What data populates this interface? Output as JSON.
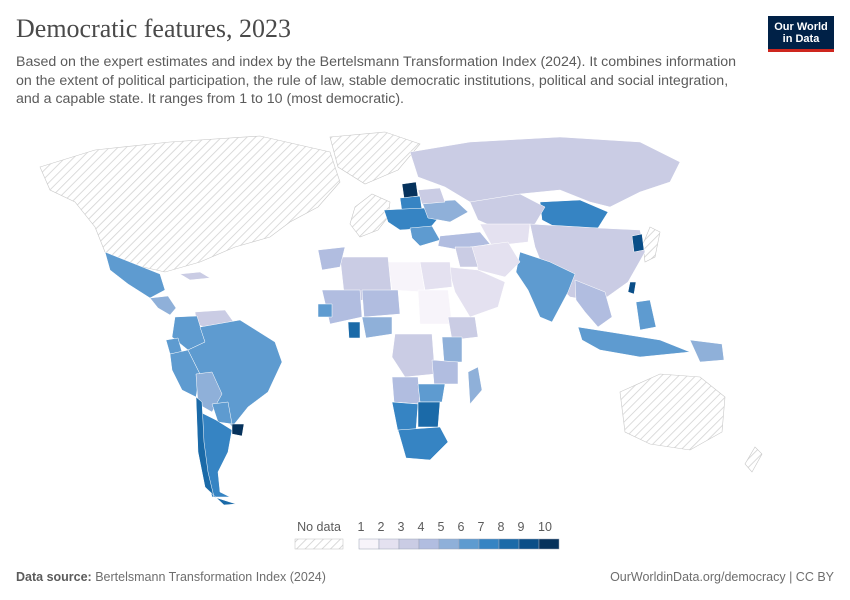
{
  "header": {
    "title": "Democratic features, 2023",
    "subtitle": "Based on the expert estimates and index by the Bertelsmann Transformation Index (2024). It combines information on the extent of political participation, the rule of law, stable democratic institutions, political and social integration, and a capable state. It ranges from 1 to 10 (most democratic).",
    "logo_line1": "Our World",
    "logo_line2": "in Data"
  },
  "legend": {
    "no_data_label": "No data",
    "ticks": [
      "1",
      "2",
      "3",
      "4",
      "5",
      "6",
      "7",
      "8",
      "9",
      "10"
    ],
    "colors": [
      "#f7f4fa",
      "#e4e1f0",
      "#cacce4",
      "#b1bde0",
      "#8fb0d9",
      "#5e9bd0",
      "#3684c3",
      "#1b6aa8",
      "#0a4e88",
      "#06325c"
    ]
  },
  "footer": {
    "source_label": "Data source:",
    "source_text": "Bertelsmann Transformation Index (2024)",
    "credit": "OurWorldinData.org/democracy | CC BY"
  },
  "chart_data": {
    "type": "choropleth",
    "title": "Democratic features, 2023",
    "scale": [
      1,
      10
    ],
    "no_data_regions": [
      "United States",
      "Canada",
      "Greenland",
      "Western Europe",
      "Japan",
      "Australia",
      "New Zealand"
    ],
    "regions": [
      {
        "name": "Mexico",
        "value": 6
      },
      {
        "name": "Central America",
        "value": 5
      },
      {
        "name": "Cuba",
        "value": 3
      },
      {
        "name": "Venezuela",
        "value": 3
      },
      {
        "name": "Colombia",
        "value": 6
      },
      {
        "name": "Ecuador",
        "value": 6
      },
      {
        "name": "Peru",
        "value": 6
      },
      {
        "name": "Brazil",
        "value": 6
      },
      {
        "name": "Bolivia",
        "value": 5
      },
      {
        "name": "Paraguay",
        "value": 6
      },
      {
        "name": "Argentina",
        "value": 7
      },
      {
        "name": "Chile",
        "value": 8
      },
      {
        "name": "Uruguay",
        "value": 10
      },
      {
        "name": "Baltics",
        "value": 10
      },
      {
        "name": "Poland",
        "value": 7
      },
      {
        "name": "Central Europe",
        "value": 7
      },
      {
        "name": "Balkans",
        "value": 6
      },
      {
        "name": "Ukraine",
        "value": 5
      },
      {
        "name": "Belarus",
        "value": 3
      },
      {
        "name": "Turkey",
        "value": 4
      },
      {
        "name": "Russia",
        "value": 3
      },
      {
        "name": "Mongolia",
        "value": 7
      },
      {
        "name": "Kazakhstan",
        "value": 3
      },
      {
        "name": "Central Asia",
        "value": 2
      },
      {
        "name": "China",
        "value": 3
      },
      {
        "name": "South Korea",
        "value": 9
      },
      {
        "name": "Taiwan",
        "value": 9
      },
      {
        "name": "India",
        "value": 6
      },
      {
        "name": "Iran",
        "value": 2
      },
      {
        "name": "Arabian Peninsula",
        "value": 2
      },
      {
        "name": "Iraq",
        "value": 3
      },
      {
        "name": "Egypt",
        "value": 2
      },
      {
        "name": "Libya",
        "value": 1
      },
      {
        "name": "Algeria",
        "value": 3
      },
      {
        "name": "Morocco",
        "value": 4
      },
      {
        "name": "Mali",
        "value": 4
      },
      {
        "name": "Niger",
        "value": 4
      },
      {
        "name": "Nigeria",
        "value": 5
      },
      {
        "name": "Ghana",
        "value": 8
      },
      {
        "name": "Senegal",
        "value": 6
      },
      {
        "name": "Sudan",
        "value": 1
      },
      {
        "name": "Ethiopia",
        "value": 3
      },
      {
        "name": "Kenya",
        "value": 5
      },
      {
        "name": "DR Congo",
        "value": 3
      },
      {
        "name": "Angola",
        "value": 4
      },
      {
        "name": "Tanzania",
        "value": 4
      },
      {
        "name": "Zambia",
        "value": 6
      },
      {
        "name": "Namibia",
        "value": 7
      },
      {
        "name": "Botswana",
        "value": 8
      },
      {
        "name": "South Africa",
        "value": 7
      },
      {
        "name": "Madagascar",
        "value": 5
      },
      {
        "name": "Southeast Asia",
        "value": 4
      },
      {
        "name": "Philippines",
        "value": 6
      },
      {
        "name": "Indonesia",
        "value": 6
      },
      {
        "name": "Papua New Guinea",
        "value": 5
      }
    ]
  }
}
